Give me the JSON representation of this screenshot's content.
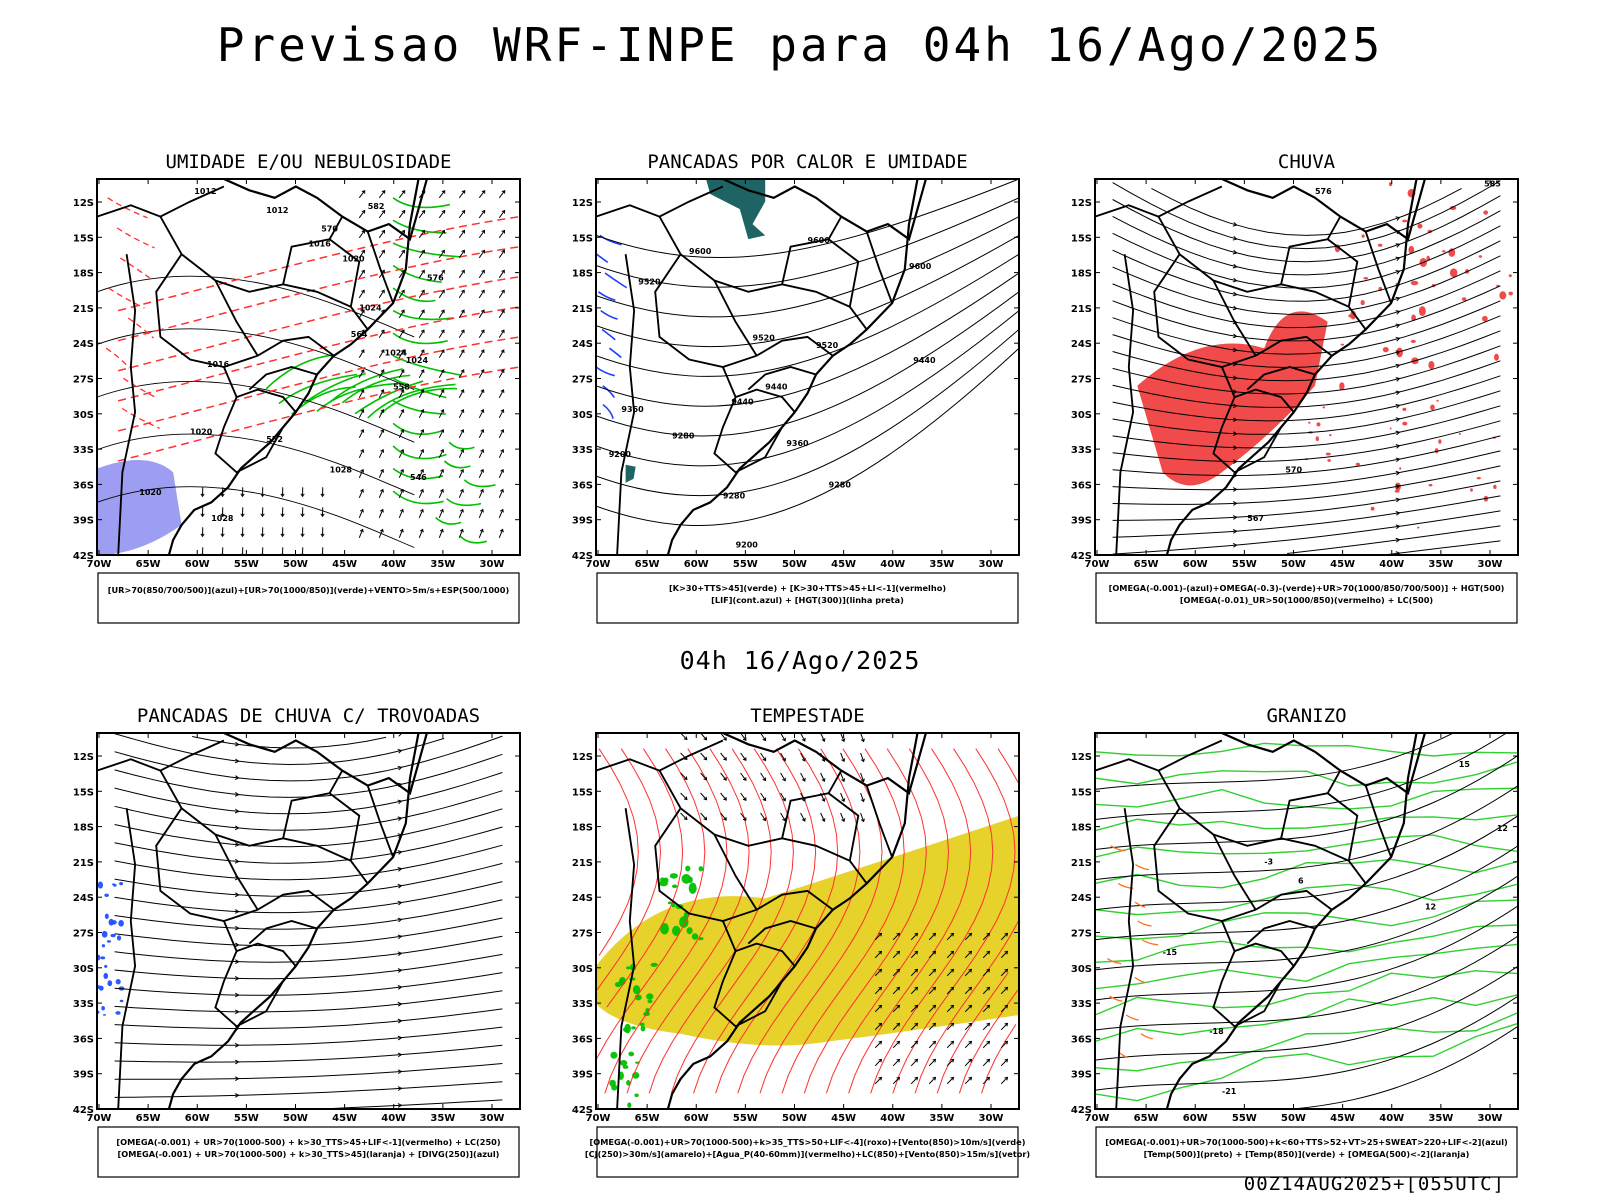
{
  "header": {
    "title": "Previsao WRF-INPE  para 04h 16/Ago/2025",
    "middle_title": "04h 16/Ago/2025",
    "run_stamp": "00Z14AUG2025+[055UTC]"
  },
  "chart_data": [
    {
      "type": "contour-map",
      "title": "UMIDADE E/OU NEBULOSIDADE",
      "caption_lines": [
        "[UR>70(850/700/500)](azul)+[UR>70(1000/850)](verde)+VENTO>5m/s+ESP(500/1000)"
      ],
      "x_ticks": [
        "70W",
        "65W",
        "60W",
        "55W",
        "50W",
        "45W",
        "40W",
        "35W",
        "30W"
      ],
      "y_ticks": [
        "12S",
        "15S",
        "18S",
        "21S",
        "24S",
        "27S",
        "30S",
        "33S",
        "36S",
        "39S",
        "42S"
      ],
      "contour_labels": [
        "1012",
        "1012",
        "1016",
        "1020",
        "1024",
        "1024",
        "1016",
        "1020",
        "1024",
        "1028",
        "1020",
        "1028",
        "570",
        "564",
        "558",
        "552",
        "546",
        "582",
        "576"
      ],
      "colors": {
        "humidity_high": "#8c8cf0",
        "humidity_low": "#00c000",
        "thickness": "#ff3030",
        "pressure": "#000000"
      }
    },
    {
      "type": "contour-map",
      "title": "PANCADAS POR CALOR E UMIDADE",
      "caption_lines": [
        "[K>30+TTS>45](verde) + [K>30+TTS>45+LI<-1](vermelho)",
        "[LIF](cont.azul) + [HGT(300)](linha preta)"
      ],
      "x_ticks": [
        "70W",
        "65W",
        "60W",
        "55W",
        "50W",
        "45W",
        "40W",
        "35W",
        "30W"
      ],
      "y_ticks": [
        "12S",
        "15S",
        "18S",
        "21S",
        "24S",
        "27S",
        "30S",
        "33S",
        "36S",
        "39S",
        "42S"
      ],
      "contour_labels": [
        "9600",
        "9600",
        "9600",
        "9520",
        "9520",
        "9520",
        "9440",
        "9440",
        "9440",
        "9360",
        "9360",
        "9280",
        "9280",
        "9280",
        "9200",
        "9200"
      ],
      "colors": {
        "lif": "#2040ff",
        "hgt": "#000000",
        "fill": "#1e6464"
      }
    },
    {
      "type": "streamline-map",
      "title": "CHUVA",
      "caption_lines": [
        "[OMEGA(-0.001)-(azul)+OMEGA(-0.3)-(verde)+UR>70(1000/850/700/500)] + HGT(500)",
        "[OMEGA(-0.01)_UR>50(1000/850)(vermelho) + LC(500)"
      ],
      "x_ticks": [
        "70W",
        "65W",
        "60W",
        "55W",
        "50W",
        "45W",
        "40W",
        "35W",
        "30W"
      ],
      "y_ticks": [
        "12S",
        "15S",
        "18S",
        "21S",
        "24S",
        "27S",
        "30S",
        "33S",
        "36S",
        "39S",
        "42S"
      ],
      "contour_labels": [
        "585",
        "576",
        "570",
        "567"
      ],
      "colors": {
        "rain": "#f04040",
        "stream": "#000000"
      }
    },
    {
      "type": "streamline-map",
      "title": "PANCADAS DE CHUVA C/ TROVOADAS",
      "caption_lines": [
        "[OMEGA(-0.001) + UR>70(1000-500) + k>30_TTS>45+LIF<-1](vermelho) + LC(250)",
        "[OMEGA(-0.001) + UR>70(1000-500) + k>30_TTS>45](laranja) + [DIVG(250)](azul)"
      ],
      "x_ticks": [
        "70W",
        "65W",
        "60W",
        "55W",
        "50W",
        "45W",
        "40W",
        "35W",
        "30W"
      ],
      "y_ticks": [
        "12S",
        "15S",
        "18S",
        "21S",
        "24S",
        "27S",
        "30S",
        "33S",
        "36S",
        "39S",
        "42S"
      ],
      "contour_labels": [],
      "colors": {
        "divg": "#2050ff",
        "stream": "#000000"
      }
    },
    {
      "type": "streamline-map",
      "title": "TEMPESTADE",
      "caption_lines": [
        "[OMEGA(-0.001)+UR>70(1000-500)+k>35_TTS>50+LIF<-4](roxo)+[Vento(850)>10m/s](verde)",
        "[CJ(250)>30m/s](amarelo)+[Agua_P(40-60mm)](vermelho)+LC(850)+[Vento(850)>15m/s](vetor)"
      ],
      "x_ticks": [
        "70W",
        "65W",
        "60W",
        "55W",
        "50W",
        "45W",
        "40W",
        "35W",
        "30W"
      ],
      "y_ticks": [
        "12S",
        "15S",
        "18S",
        "21S",
        "24S",
        "27S",
        "30S",
        "33S",
        "36S",
        "39S",
        "42S"
      ],
      "contour_labels": [],
      "colors": {
        "jet": "#e6d22a",
        "wind": "#00c000",
        "stream": "#ff3030"
      }
    },
    {
      "type": "contour-map",
      "title": "GRANIZO",
      "caption_lines": [
        "[OMEGA(-0.001)+UR>70(1000-500)+k<60+TTS>52+VT>25+SWEAT>220+LIF<-2](azul)",
        "[Temp(500)](preto) + [Temp(850)](verde) + [OMEGA(500)<-2](laranja)"
      ],
      "x_ticks": [
        "70W",
        "65W",
        "60W",
        "55W",
        "50W",
        "45W",
        "40W",
        "35W",
        "30W"
      ],
      "y_ticks": [
        "12S",
        "15S",
        "18S",
        "21S",
        "24S",
        "27S",
        "30S",
        "33S",
        "36S",
        "39S",
        "42S"
      ],
      "contour_labels": [
        "12",
        "6",
        "-3",
        "-15",
        "-18",
        "-21",
        "15",
        "12"
      ],
      "colors": {
        "temp850": "#30d030",
        "temp500": "#000000",
        "omega": "#ff7020"
      }
    }
  ]
}
